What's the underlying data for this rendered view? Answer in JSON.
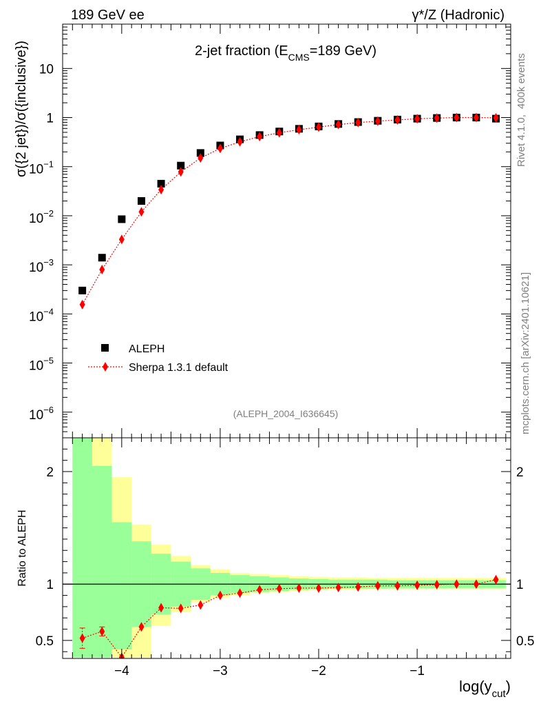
{
  "header": {
    "left": "189 GeV ee",
    "right": "γ*/Z (Hadronic)"
  },
  "side_labels": {
    "rivet_prefix": "Rivet 4.1.0,",
    "events": "400k events",
    "mcplots": "mcplots.cern.ch [arXiv:2401.10621]"
  },
  "colors": {
    "data": "#000000",
    "mc": "#ff0000",
    "band_inner": "#99ff99",
    "band_outer": "#ffff99"
  },
  "chart_data": [
    {
      "type": "scatter",
      "panel": "main",
      "title_prefix": "2-jet fraction (E",
      "title_sub": "CMS",
      "title_suffix": "=189 GeV)",
      "ylabel": "σ({2 jet})/σ({inclusive})",
      "yscale": "log",
      "xlim": [
        -4.6,
        -0.05
      ],
      "ylim": [
        3e-07,
        80
      ],
      "watermark": "(ALEPH_2004_I636645)",
      "x_ticks": [
        "−4",
        "−3",
        "−2",
        "−1"
      ],
      "y_ticks": [
        {
          "base": "10",
          "exp": "−6"
        },
        {
          "base": "10",
          "exp": "−5"
        },
        {
          "base": "10",
          "exp": "−4"
        },
        {
          "base": "10",
          "exp": "−3"
        },
        {
          "base": "10",
          "exp": "−2"
        },
        {
          "base": "10",
          "exp": "−1"
        },
        {
          "base": "1",
          "exp": ""
        },
        {
          "base": "10",
          "exp": ""
        }
      ],
      "x": [
        -4.4,
        -4.2,
        -4.0,
        -3.8,
        -3.6,
        -3.4,
        -3.2,
        -3.0,
        -2.8,
        -2.6,
        -2.4,
        -2.2,
        -2.0,
        -1.8,
        -1.6,
        -1.4,
        -1.2,
        -1.0,
        -0.8,
        -0.6,
        -0.4,
        -0.2
      ],
      "series": [
        {
          "name": "ALEPH",
          "marker": "square",
          "values": [
            0.0003,
            0.0014,
            0.0085,
            0.02,
            0.045,
            0.105,
            0.19,
            0.27,
            0.36,
            0.44,
            0.52,
            0.59,
            0.66,
            0.74,
            0.81,
            0.86,
            0.91,
            0.95,
            0.98,
            1.0,
            1.0,
            0.95
          ]
        },
        {
          "name": "Sherpa 1.3.1 default",
          "marker": "diamond",
          "style": "dotted",
          "values": [
            0.000155,
            0.0008,
            0.0033,
            0.012,
            0.034,
            0.078,
            0.15,
            0.235,
            0.32,
            0.41,
            0.49,
            0.565,
            0.64,
            0.72,
            0.79,
            0.845,
            0.895,
            0.945,
            0.975,
            1.0,
            1.0,
            0.99
          ]
        }
      ]
    },
    {
      "type": "line",
      "panel": "ratio",
      "ylabel": "Ratio to ALEPH",
      "xlabel": "log(y",
      "xlabel_sub": "cut",
      "xlabel_suffix": ")",
      "xlim": [
        -4.6,
        -0.05
      ],
      "ylim": [
        0.34,
        2.3
      ],
      "y_ticks": [
        "0.5",
        "1",
        "2"
      ],
      "band_edges": [
        -4.5,
        -4.3,
        -4.1,
        -3.9,
        -3.7,
        -3.5,
        -3.3,
        -3.1,
        -2.9,
        -2.7,
        -2.5,
        -2.3,
        -2.1,
        -1.9,
        -1.7,
        -1.5,
        -1.3,
        -1.1,
        -0.9,
        -0.7,
        -0.5,
        -0.3,
        -0.1
      ],
      "band_inner": [
        [
          0.35,
          2.3
        ],
        [
          0.35,
          2.05
        ],
        [
          0.42,
          1.55
        ],
        [
          0.62,
          1.38
        ],
        [
          0.73,
          1.27
        ],
        [
          0.8,
          1.2
        ],
        [
          0.86,
          1.14
        ],
        [
          0.9,
          1.1
        ],
        [
          0.92,
          1.08
        ],
        [
          0.93,
          1.07
        ],
        [
          0.94,
          1.06
        ],
        [
          0.95,
          1.05
        ],
        [
          0.955,
          1.045
        ],
        [
          0.96,
          1.04
        ],
        [
          0.96,
          1.04
        ],
        [
          0.96,
          1.04
        ],
        [
          0.965,
          1.035
        ],
        [
          0.965,
          1.035
        ],
        [
          0.965,
          1.035
        ],
        [
          0.965,
          1.035
        ],
        [
          0.965,
          1.035
        ],
        [
          0.965,
          1.035
        ]
      ],
      "band_outer": [
        [
          0.35,
          2.3
        ],
        [
          0.35,
          2.3
        ],
        [
          0.35,
          1.95
        ],
        [
          0.35,
          1.53
        ],
        [
          0.63,
          1.35
        ],
        [
          0.75,
          1.25
        ],
        [
          0.84,
          1.17
        ],
        [
          0.88,
          1.13
        ],
        [
          0.9,
          1.1
        ],
        [
          0.92,
          1.09
        ],
        [
          0.93,
          1.08
        ],
        [
          0.94,
          1.07
        ],
        [
          0.945,
          1.065
        ],
        [
          0.95,
          1.06
        ],
        [
          0.95,
          1.06
        ],
        [
          0.955,
          1.055
        ],
        [
          0.955,
          1.055
        ],
        [
          0.955,
          1.055
        ],
        [
          0.955,
          1.055
        ],
        [
          0.955,
          1.055
        ],
        [
          0.955,
          1.055
        ],
        [
          0.955,
          1.055
        ]
      ],
      "x": [
        -4.4,
        -4.2,
        -4.0,
        -3.8,
        -3.6,
        -3.4,
        -3.2,
        -3.0,
        -2.8,
        -2.6,
        -2.4,
        -2.2,
        -2.0,
        -1.8,
        -1.6,
        -1.4,
        -1.2,
        -1.0,
        -0.8,
        -0.6,
        -0.4,
        -0.2
      ],
      "values": [
        0.52,
        0.58,
        0.35,
        0.62,
        0.79,
        0.785,
        0.815,
        0.9,
        0.92,
        0.95,
        0.96,
        0.965,
        0.965,
        0.97,
        0.975,
        0.985,
        0.985,
        0.99,
        0.995,
        1.0,
        1.0,
        1.04
      ],
      "errors": [
        0.09,
        0.04,
        0,
        0,
        0,
        0,
        0,
        0,
        0,
        0,
        0,
        0,
        0,
        0,
        0,
        0,
        0,
        0,
        0,
        0,
        0,
        0
      ]
    }
  ]
}
